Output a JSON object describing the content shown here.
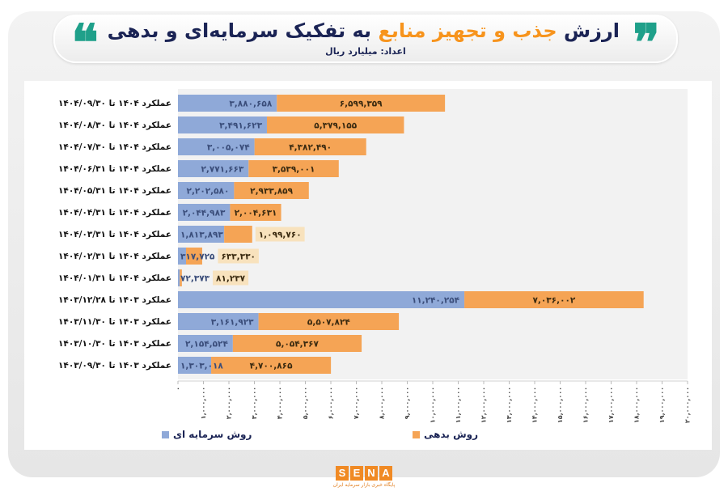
{
  "header": {
    "title_part1": "ارزش",
    "title_highlight": "جذب و تجهیز منابع",
    "title_part2": "به تفکیک سرمایه‌ای و بدهی",
    "subtitle": "اعداد: میلیارد ریال",
    "quote_open": "❞",
    "quote_close": "❝"
  },
  "logo": {
    "letters": [
      "S",
      "E",
      "N",
      "A"
    ],
    "tagline": "پایگاه خبری بازار سرمایه ایران"
  },
  "colors": {
    "equity": "#8fa9d8",
    "debt": "#f5a455",
    "title": "#1b2455",
    "accent": "#f7941d",
    "quote": "#1fa08a",
    "label_bg": "#f8e2bd",
    "plot_bg": "#f2f2f2"
  },
  "chart_data": {
    "type": "bar",
    "orientation": "horizontal",
    "stacked": true,
    "title": "ارزش جذب و تجهیز منابع به تفکیک سرمایه‌ای و بدهی",
    "categories": [
      "عملکرد ۱۴۰۴ تا ۱۴۰۴/۰۹/۳۰",
      "عملکرد ۱۴۰۴ تا ۱۴۰۴/۰۸/۳۰",
      "عملکرد ۱۴۰۴ تا ۱۴۰۴/۰۷/۳۰",
      "عملکرد ۱۴۰۴ تا ۱۴۰۴/۰۶/۳۱",
      "عملکرد ۱۴۰۴ تا ۱۴۰۴/۰۵/۳۱",
      "عملکرد ۱۴۰۴ تا ۱۴۰۴/۰۴/۳۱",
      "عملکرد ۱۴۰۴ تا ۱۴۰۴/۰۳/۳۱",
      "عملکرد ۱۴۰۴ تا ۱۴۰۴/۰۲/۳۱",
      "عملکرد ۱۴۰۴ تا ۱۴۰۴/۰۱/۳۱",
      "عملکرد ۱۴۰۳ تا ۱۴۰۳/۱۲/۲۸",
      "عملکرد ۱۴۰۳ تا ۱۴۰۳/۱۱/۳۰",
      "عملکرد ۱۴۰۳ تا ۱۴۰۳/۱۰/۳۰",
      "عملکرد ۱۴۰۳ تا ۱۴۰۳/۰۹/۳۰"
    ],
    "series": [
      {
        "name": "روش سرمایه ای",
        "color": "#8fa9d8",
        "values": [
          3880658,
          3491623,
          3005074,
          2771663,
          2202580,
          2044983,
          1813893,
          317725,
          72373,
          11240254,
          3161923,
          2154524,
          1303018
        ]
      },
      {
        "name": "روش بدهی",
        "color": "#f5a455",
        "values": [
          6599359,
          5379155,
          4382490,
          3539001,
          2933859,
          2004631,
          1099760,
          633330,
          81237,
          7036002,
          5507824,
          5054367,
          4700865
        ]
      }
    ],
    "xlim": [
      0,
      20000000
    ],
    "xticks": [
      0,
      1000000,
      2000000,
      3000000,
      4000000,
      5000000,
      6000000,
      7000000,
      8000000,
      9000000,
      10000000,
      11000000,
      12000000,
      13000000,
      14000000,
      15000000,
      16000000,
      17000000,
      18000000,
      19000000,
      20000000
    ],
    "xtick_labels": [
      "۰",
      "۱,۰۰۰,۰۰۰",
      "۲,۰۰۰,۰۰۰",
      "۳,۰۰۰,۰۰۰",
      "۴,۰۰۰,۰۰۰",
      "۵,۰۰۰,۰۰۰",
      "۶,۰۰۰,۰۰۰",
      "۷,۰۰۰,۰۰۰",
      "۸,۰۰۰,۰۰۰",
      "۹,۰۰۰,۰۰۰",
      "۱۰,۰۰۰,۰۰۰",
      "۱۱,۰۰۰,۰۰۰",
      "۱۲,۰۰۰,۰۰۰",
      "۱۳,۰۰۰,۰۰۰",
      "۱۴,۰۰۰,۰۰۰",
      "۱۵,۰۰۰,۰۰۰",
      "۱۶,۰۰۰,۰۰۰",
      "۱۷,۰۰۰,۰۰۰",
      "۱۸,۰۰۰,۰۰۰",
      "۱۹,۰۰۰,۰۰۰",
      "۲۰,۰۰۰,۰۰۰"
    ],
    "grid": false,
    "legend": "bottom",
    "data_labels": true
  }
}
